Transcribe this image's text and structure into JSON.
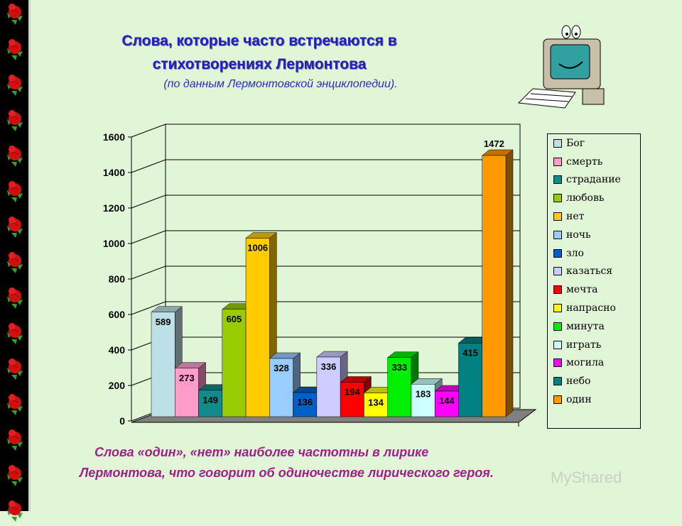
{
  "header": {
    "title_line1": "Слова, которые часто встречаются в",
    "title_line2": "стихотворениях Лермонтова",
    "subtitle": "(по данным Лермонтовской энциклопедии)."
  },
  "chart_data": {
    "type": "bar",
    "title": "",
    "categories": [
      "Бог",
      "смерть",
      "страдание",
      "любовь",
      "нет",
      "ночь",
      "зло",
      "казаться",
      "мечта",
      "напрасно",
      "минута",
      "играть",
      "могила",
      "небо",
      "один"
    ],
    "values": [
      589,
      273,
      149,
      605,
      1006,
      328,
      136,
      336,
      194,
      134,
      333,
      183,
      144,
      415,
      1472
    ],
    "colors": [
      "#bde0e6",
      "#ff9ccc",
      "#108a8a",
      "#99cc00",
      "#ffcc00",
      "#99ccff",
      "#0060c8",
      "#ccccff",
      "#ff0000",
      "#ffff00",
      "#00ee00",
      "#ccffff",
      "#ff00ff",
      "#008080",
      "#ff9900"
    ],
    "yticks": [
      0,
      200,
      400,
      600,
      800,
      1000,
      1200,
      1400,
      1600
    ],
    "ylim": [
      0,
      1600
    ],
    "grid": true,
    "legend": "right",
    "xlabel": "",
    "ylabel": ""
  },
  "footer": {
    "line1": "Слова «один», «нет» наиболее частотны в лирике",
    "line2": "Лермонтова, что говорит об одиночестве лирического героя."
  },
  "watermark": "MyShared"
}
